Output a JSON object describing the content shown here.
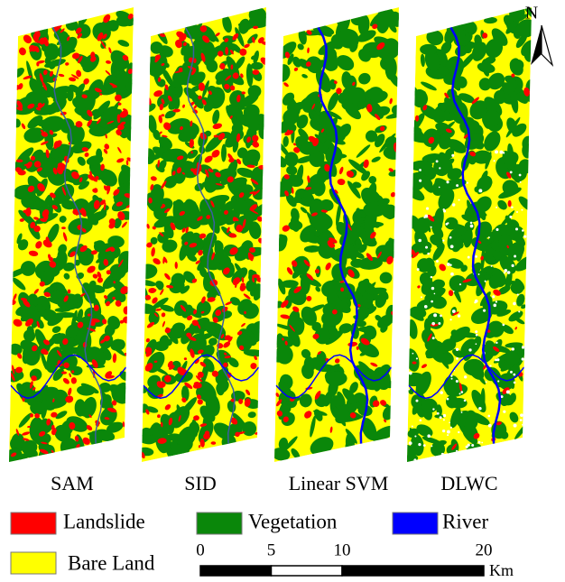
{
  "panels": [
    {
      "label": "SAM"
    },
    {
      "label": "SID"
    },
    {
      "label": "Linear SVM"
    },
    {
      "label": "DLWC"
    }
  ],
  "legend": [
    {
      "label": "Landslide",
      "color": "#ff0000"
    },
    {
      "label": "Vegetation",
      "color": "#0a870a"
    },
    {
      "label": "River",
      "color": "#0000ff"
    },
    {
      "label": "Bare Land",
      "color": "#ffff00"
    }
  ],
  "scale_bar": {
    "ticks": [
      0,
      5,
      10,
      20
    ],
    "unit": "Km"
  },
  "north": "N"
}
